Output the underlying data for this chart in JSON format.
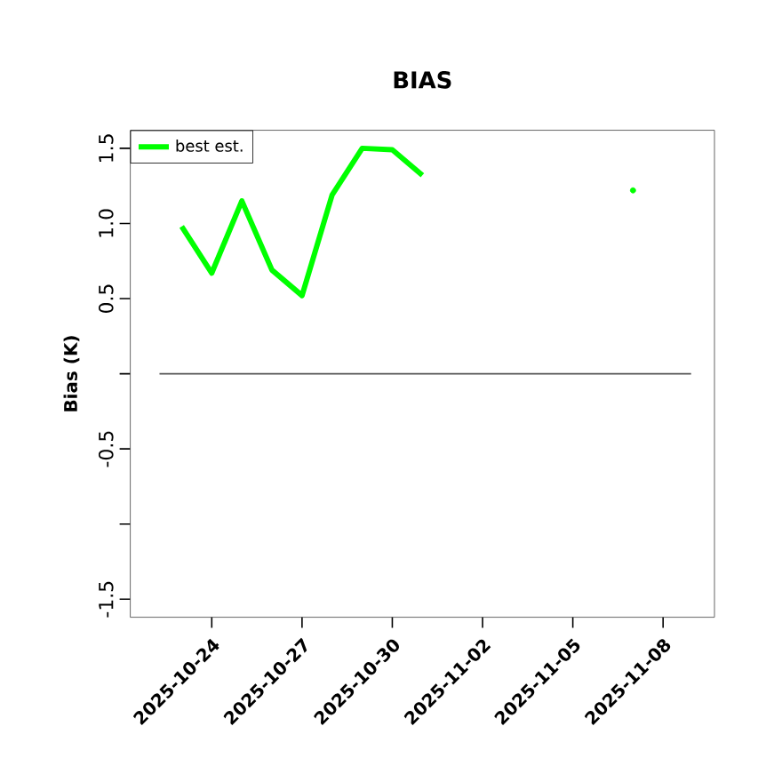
{
  "chart_data": {
    "type": "line",
    "title": "BIAS",
    "ylabel": "Bias (K)",
    "x": [
      "2025-10-23",
      "2025-10-24",
      "2025-10-25",
      "2025-10-26",
      "2025-10-27",
      "2025-10-28",
      "2025-10-29",
      "2025-10-30",
      "2025-10-31",
      "2025-11-01",
      "2025-11-02",
      "2025-11-03",
      "2025-11-04",
      "2025-11-05",
      "2025-11-06",
      "2025-11-07"
    ],
    "series": [
      {
        "name": "best est.",
        "color": "#00ff00",
        "values": [
          0.98,
          0.67,
          1.15,
          0.69,
          0.52,
          1.19,
          1.5,
          1.49,
          1.32,
          null,
          null,
          null,
          null,
          null,
          null,
          1.22
        ]
      }
    ],
    "xlim": [
      "2025-10-21T07:00",
      "2025-11-09T17:00"
    ],
    "xticks": [
      "2025-10-24",
      "2025-10-27",
      "2025-10-30",
      "2025-11-02",
      "2025-11-05",
      "2025-11-08"
    ],
    "ylim": [
      -1.62,
      1.62
    ],
    "yticks": [
      -1.5,
      {
        "value": -1.0,
        "label": null
      },
      -0.5,
      {
        "value": 0,
        "label": null
      },
      0.5,
      {
        "value": 1.0,
        "label": "1.0"
      },
      1.5
    ],
    "ref_lines": [
      {
        "axis": "y",
        "value": 0,
        "color": "#555555"
      }
    ],
    "legend": "top left",
    "line_style": "solid",
    "marker": "none",
    "grid": false
  }
}
